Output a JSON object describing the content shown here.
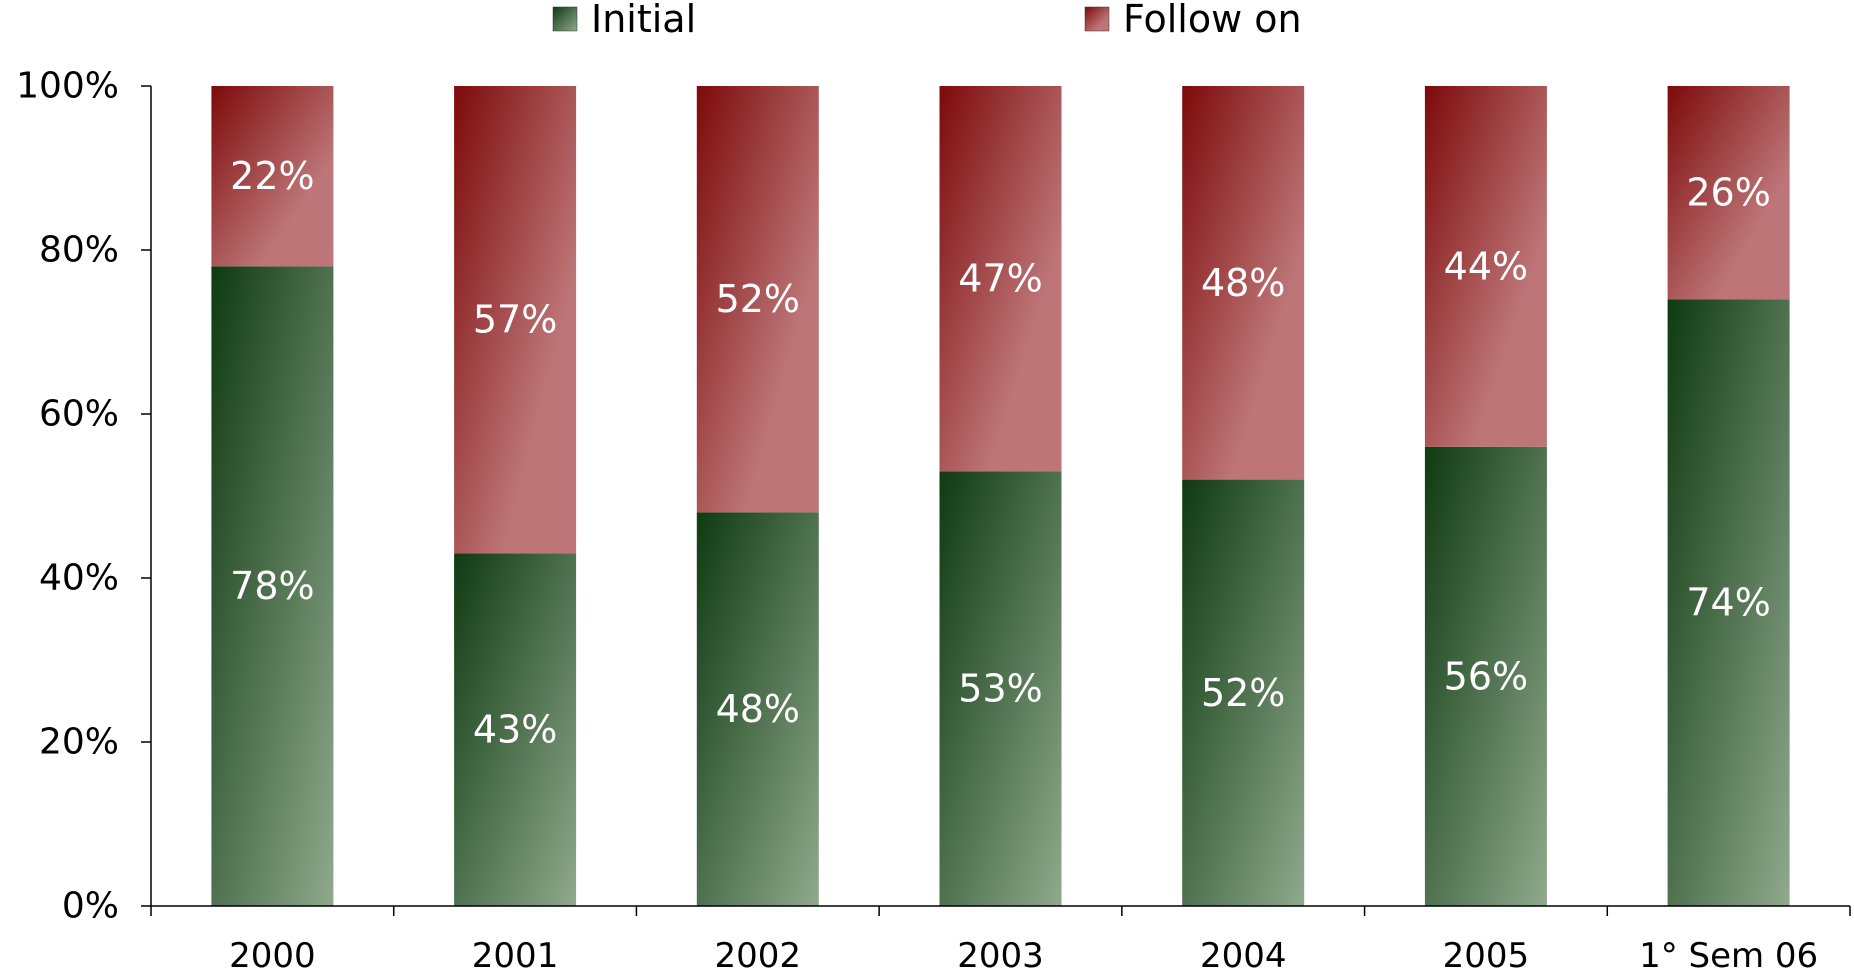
{
  "colors": {
    "initial_dark": "#0f3a12",
    "initial_light": "#8fa98c",
    "follow_dark": "#7d0a0a",
    "follow_light": "#bd7577",
    "label": "#ffffff",
    "axis": "#000000"
  },
  "chart_data": {
    "type": "bar",
    "stacked": true,
    "percent_stacked": true,
    "categories": [
      "2000",
      "2001",
      "2002",
      "2003",
      "2004",
      "2005",
      "1° Sem 06"
    ],
    "series": [
      {
        "name": "Initial",
        "values": [
          78,
          43,
          48,
          53,
          52,
          56,
          74
        ],
        "labels": [
          "78%",
          "43%",
          "48%",
          "53%",
          "52%",
          "56%",
          "74%"
        ]
      },
      {
        "name": "Follow on",
        "values": [
          22,
          57,
          52,
          47,
          48,
          44,
          26
        ],
        "labels": [
          "22%",
          "57%",
          "52%",
          "47%",
          "48%",
          "44%",
          "26%"
        ]
      }
    ],
    "ylim": [
      0,
      100
    ],
    "yticks": [
      0,
      20,
      40,
      60,
      80,
      100
    ],
    "ytick_labels": [
      "0%",
      "20%",
      "40%",
      "60%",
      "80%",
      "100%"
    ],
    "grid": false,
    "legend_position": "top"
  }
}
